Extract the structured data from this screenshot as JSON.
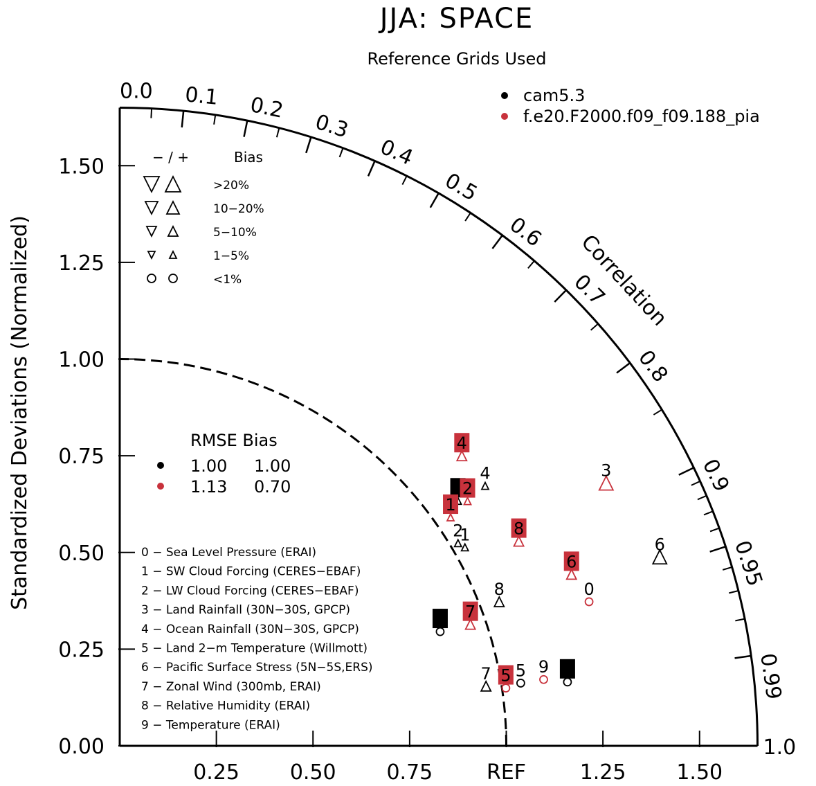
{
  "chart_data": {
    "type": "taylor",
    "title": "JJA: SPACE",
    "subtitle": "Reference Grids Used",
    "ylabel": "Standardized Deviations (Normalized)",
    "arc_label": "Correlation",
    "x_ticks": [
      "0.25",
      "0.50",
      "0.75",
      "REF",
      "1.25",
      "1.50"
    ],
    "y_ticks": [
      "0.00",
      "0.25",
      "0.50",
      "0.75",
      "1.00",
      "1.25",
      "1.50"
    ],
    "corr_labels": [
      "0.0",
      "0.1",
      "0.2",
      "0.3",
      "0.4",
      "0.5",
      "0.6",
      "0.7",
      "0.8",
      "0.9",
      "0.95",
      "0.99",
      "1.0"
    ],
    "corr_values": [
      0.0,
      0.1,
      0.2,
      0.3,
      0.4,
      0.5,
      0.6,
      0.7,
      0.8,
      0.9,
      0.95,
      0.99,
      1.0
    ],
    "max_std": 1.65,
    "series": [
      {
        "name": "cam5.3",
        "color": "#000000",
        "points": [
          {
            "id": "0",
            "std": 0.88,
            "corr": 0.942,
            "bias": "<1%"
          },
          {
            "id": "1",
            "std": 1.03,
            "corr": 0.867,
            "bias": "1-5%"
          },
          {
            "id": "2",
            "std": 1.02,
            "corr": 0.858,
            "bias": "1-5%"
          },
          {
            "id": "3",
            "std": 1.08,
            "corr": 0.81,
            "bias": "1-5%"
          },
          {
            "id": "4",
            "std": 1.16,
            "corr": 0.815,
            "bias": "1-5%"
          },
          {
            "id": "5",
            "std": 1.05,
            "corr": 0.988,
            "bias": "<1%"
          },
          {
            "id": "6",
            "std": 1.48,
            "corr": 0.944,
            "bias": ">20%"
          },
          {
            "id": "7",
            "std": 0.96,
            "corr": 0.987,
            "bias": "5-10%"
          },
          {
            "id": "8",
            "std": 1.05,
            "corr": 0.935,
            "bias": "5-10%"
          },
          {
            "id": "9",
            "std": 1.17,
            "corr": 0.99,
            "bias": "<1%"
          }
        ]
      },
      {
        "name": "f.e20.F2000.f09_f09.188_pia",
        "color": "#c8323c",
        "points": [
          {
            "id": "0",
            "std": 1.27,
            "corr": 0.956,
            "bias": "<1%"
          },
          {
            "id": "1",
            "std": 1.04,
            "corr": 0.823,
            "bias": "1-5%"
          },
          {
            "id": "2",
            "std": 1.1,
            "corr": 0.818,
            "bias": "1-5%"
          },
          {
            "id": "3",
            "std": 1.43,
            "corr": 0.88,
            "bias": ">20%"
          },
          {
            "id": "4",
            "std": 1.16,
            "corr": 0.763,
            "bias": "5-10%"
          },
          {
            "id": "5",
            "std": 1.01,
            "corr": 0.989,
            "bias": "<1%"
          },
          {
            "id": "6",
            "std": 1.25,
            "corr": 0.935,
            "bias": "5-10%"
          },
          {
            "id": "7",
            "std": 0.96,
            "corr": 0.945,
            "bias": "5-10%"
          },
          {
            "id": "8",
            "std": 1.16,
            "corr": 0.89,
            "bias": "5-10%"
          },
          {
            "id": "9",
            "std": 1.11,
            "corr": 0.988,
            "bias": "<1%"
          }
        ]
      }
    ],
    "legend": [
      "cam5.3",
      "f.e20.F2000.f09_f09.188_pia"
    ],
    "bias_legend": {
      "header_sign": "− / +",
      "header_bias": "Bias",
      "rows": [
        ">20%",
        "10−20%",
        "5−10%",
        "1−5%",
        "<1%"
      ]
    },
    "rmse_table": {
      "header": "RMSE Bias",
      "rows": [
        {
          "rmse": "1.00",
          "bias": "1.00",
          "color": "#000000"
        },
        {
          "rmse": "1.13",
          "bias": "0.70",
          "color": "#c8323c"
        }
      ]
    },
    "variables": [
      "0 − Sea Level Pressure (ERAI)",
      "1 − SW Cloud Forcing (CERES−EBAF)",
      "2 − LW Cloud Forcing (CERES−EBAF)",
      "3 − Land Rainfall (30N−30S, GPCP)",
      "4 − Ocean Rainfall (30N−30S, GPCP)",
      "5 − Land 2−m Temperature (Willmott)",
      "6 − Pacific Surface Stress (5N−5S,ERS)",
      "7 − Zonal Wind (300mb, ERAI)",
      "8 − Relative Humidity (ERAI)",
      "9 − Temperature (ERAI)"
    ]
  }
}
